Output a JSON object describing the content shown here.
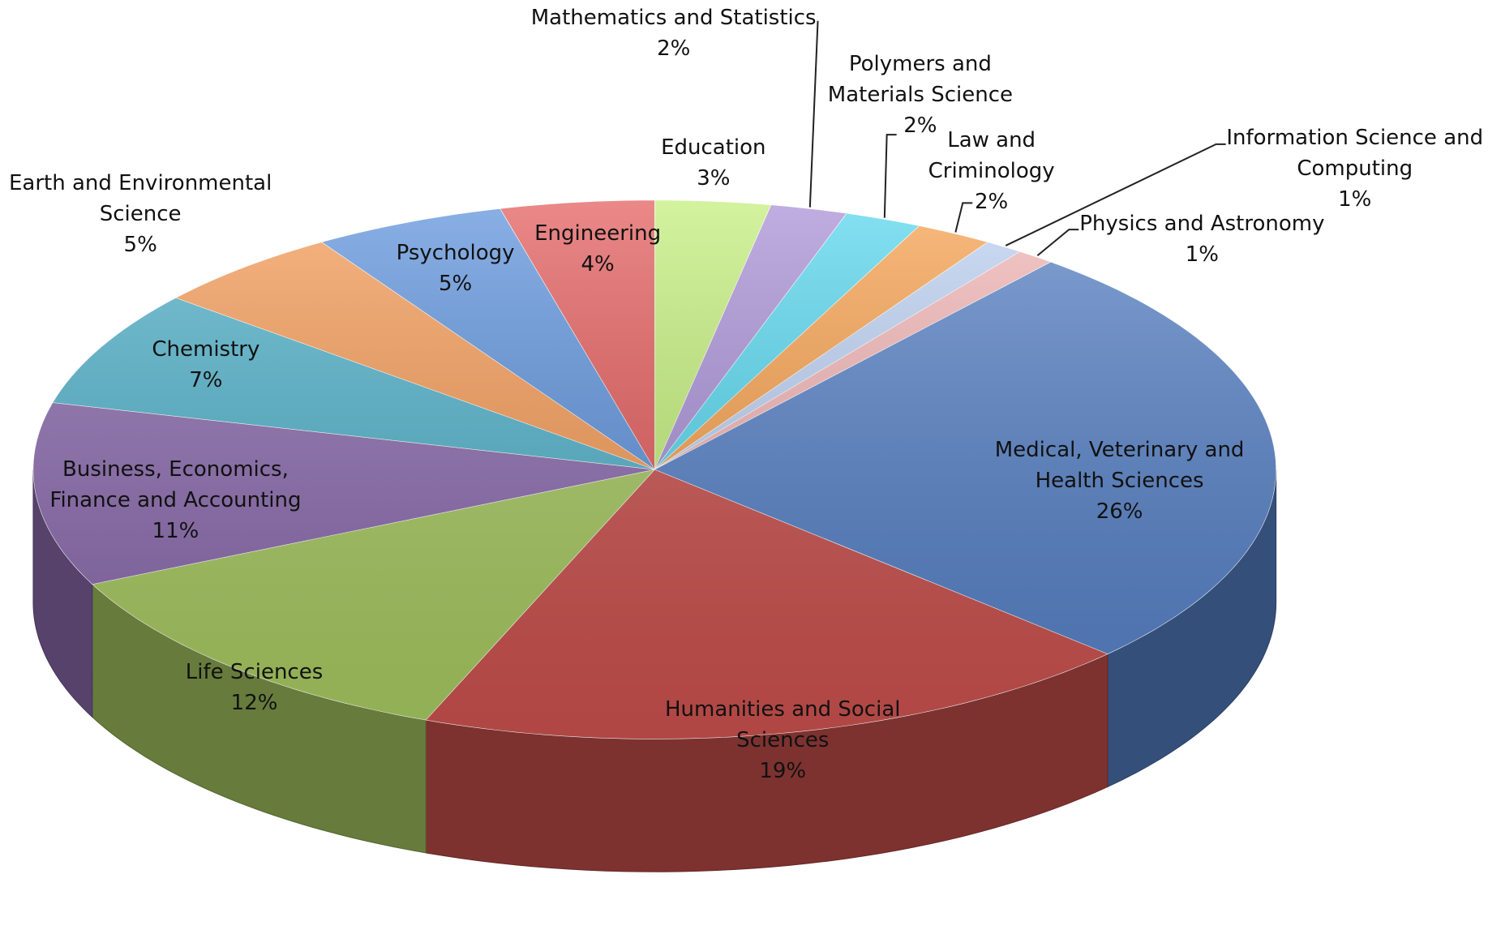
{
  "chart_data": {
    "type": "pie3d",
    "categories": [
      "Education",
      "Mathematics and Statistics",
      "Polymers and Materials Science",
      "Law and Criminology",
      "Information Science and Computing",
      "Physics and Astronomy",
      "Medical, Veterinary and Health Sciences",
      "Humanities and Social Sciences",
      "Life Sciences",
      "Business, Economics, Finance and Accounting",
      "Chemistry",
      "Earth and Environmental Science",
      "Psychology",
      "Engineering"
    ],
    "values": [
      3,
      2,
      2,
      2,
      1,
      1,
      26,
      19,
      12,
      11,
      7,
      5,
      5,
      4
    ],
    "value_labels": [
      "3%",
      "2%",
      "2%",
      "2%",
      "1%",
      "1%",
      "26%",
      "19%",
      "12%",
      "11%",
      "7%",
      "5%",
      "5%",
      "4%"
    ],
    "colors": [
      "#c3ee7a",
      "#a88fd6",
      "#55d6ee",
      "#f7a04c",
      "#bcd0f2",
      "#f2b4b4",
      "#5580c6",
      "#c9504d",
      "#a6c860",
      "#8a6aad",
      "#4fb0c9",
      "#f59a55",
      "#5d92dc",
      "#e35a5a"
    ]
  }
}
